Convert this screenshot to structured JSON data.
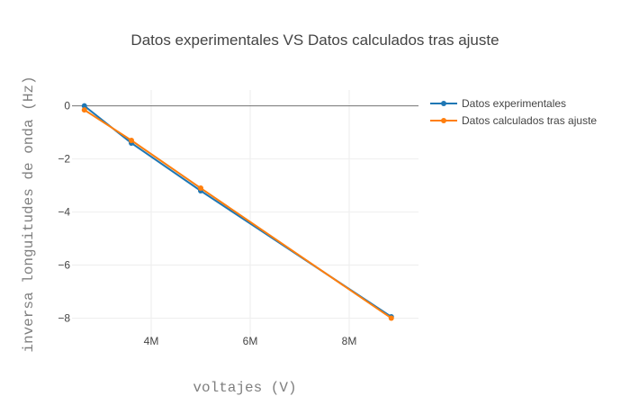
{
  "chart_data": {
    "type": "line",
    "title": "Datos experimentales VS Datos calculados tras ajuste",
    "xlabel": "voltajes (V)",
    "ylabel": "inversa longuitudes de onda  (Hz)",
    "xlim": [
      2400000,
      9400000
    ],
    "ylim": [
      -8.9,
      0.6
    ],
    "x_ticks": [
      {
        "value": 4000000,
        "label": "4M"
      },
      {
        "value": 6000000,
        "label": "6M"
      },
      {
        "value": 8000000,
        "label": "8M"
      }
    ],
    "y_ticks": [
      {
        "value": 0,
        "label": "0"
      },
      {
        "value": -2,
        "label": "−2"
      },
      {
        "value": -4,
        "label": "−4"
      },
      {
        "value": -6,
        "label": "−6"
      },
      {
        "value": -8,
        "label": "−8"
      }
    ],
    "grid": true,
    "legend_position": "top-right",
    "series": [
      {
        "name": "Datos experimentales",
        "color": "#1f77b4",
        "x": [
          2650000,
          3600000,
          5000000,
          8850000
        ],
        "y": [
          0.0,
          -1.4,
          -3.2,
          -7.95
        ]
      },
      {
        "name": "Datos calculados tras ajuste",
        "color": "#ff7f0e",
        "x": [
          2650000,
          3600000,
          5000000,
          8850000
        ],
        "y": [
          -0.15,
          -1.3,
          -3.1,
          -8.0
        ]
      }
    ]
  }
}
